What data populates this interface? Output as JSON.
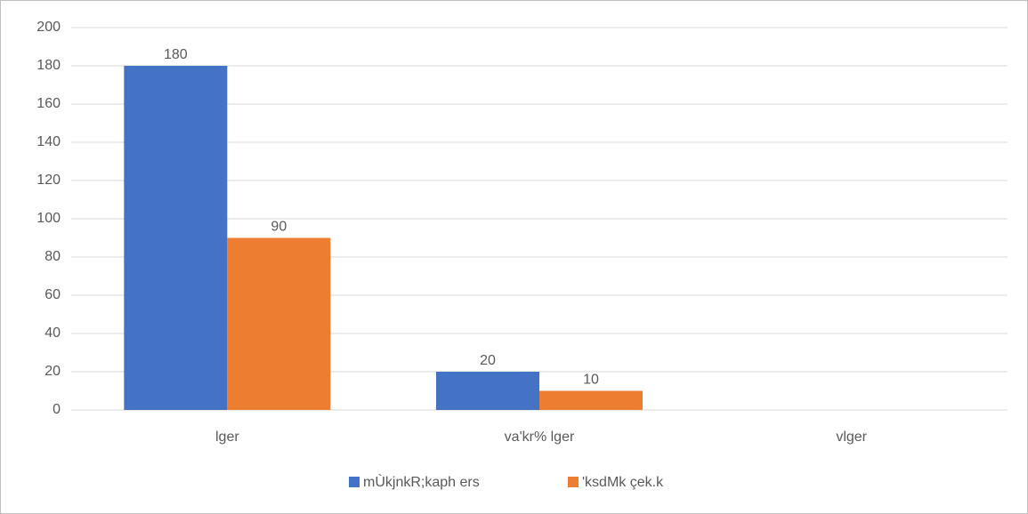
{
  "chart_data": {
    "type": "bar",
    "categories": [
      "lger",
      "va'kr% lger",
      "vlger"
    ],
    "series": [
      {
        "name": "mÙkjnkR;kaph ers",
        "color": "#4472c4",
        "values": [
          180,
          20,
          null
        ]
      },
      {
        "name": "'ksdMk çek.k",
        "color": "#ed7d31",
        "values": [
          90,
          10,
          null
        ]
      }
    ],
    "ylim": [
      0,
      200
    ],
    "yticks": [
      0,
      20,
      40,
      60,
      80,
      100,
      120,
      140,
      160,
      180,
      200
    ],
    "grid": true,
    "legend": "bottom"
  }
}
